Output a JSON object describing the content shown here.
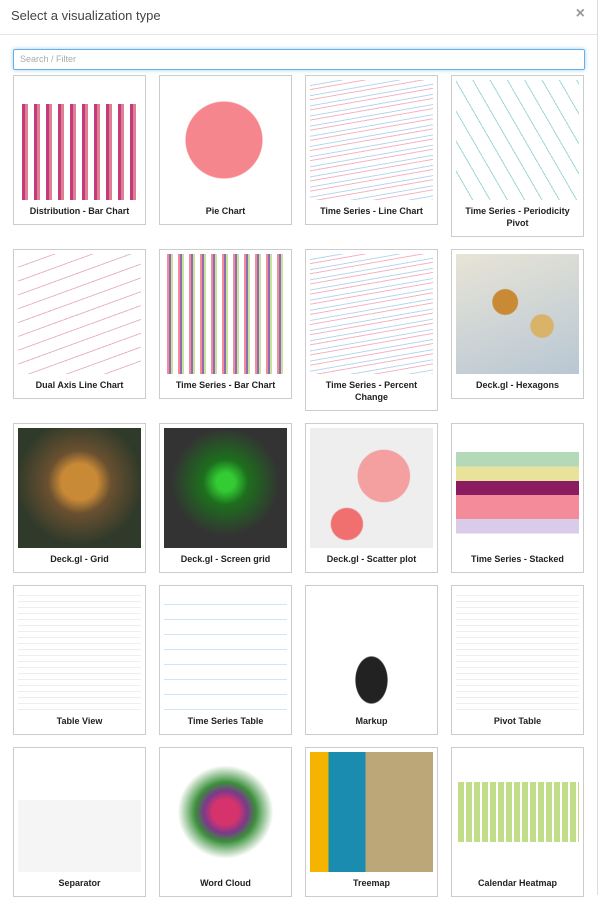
{
  "header": {
    "title": "Select a visualization type",
    "close": "×"
  },
  "search": {
    "placeholder": "Search / Filter"
  },
  "items": [
    {
      "label": "Distribution - Bar Chart"
    },
    {
      "label": "Pie Chart"
    },
    {
      "label": "Time Series - Line Chart"
    },
    {
      "label": "Time Series - Periodicity Pivot"
    },
    {
      "label": "Dual Axis Line Chart"
    },
    {
      "label": "Time Series - Bar Chart"
    },
    {
      "label": "Time Series - Percent Change"
    },
    {
      "label": "Deck.gl - Hexagons"
    },
    {
      "label": "Deck.gl - Grid"
    },
    {
      "label": "Deck.gl - Screen grid"
    },
    {
      "label": "Deck.gl - Scatter plot"
    },
    {
      "label": "Time Series - Stacked"
    },
    {
      "label": "Table View"
    },
    {
      "label": "Time Series Table"
    },
    {
      "label": "Markup"
    },
    {
      "label": "Pivot Table"
    },
    {
      "label": "Separator"
    },
    {
      "label": "Word Cloud"
    },
    {
      "label": "Treemap"
    },
    {
      "label": "Calendar Heatmap"
    }
  ]
}
